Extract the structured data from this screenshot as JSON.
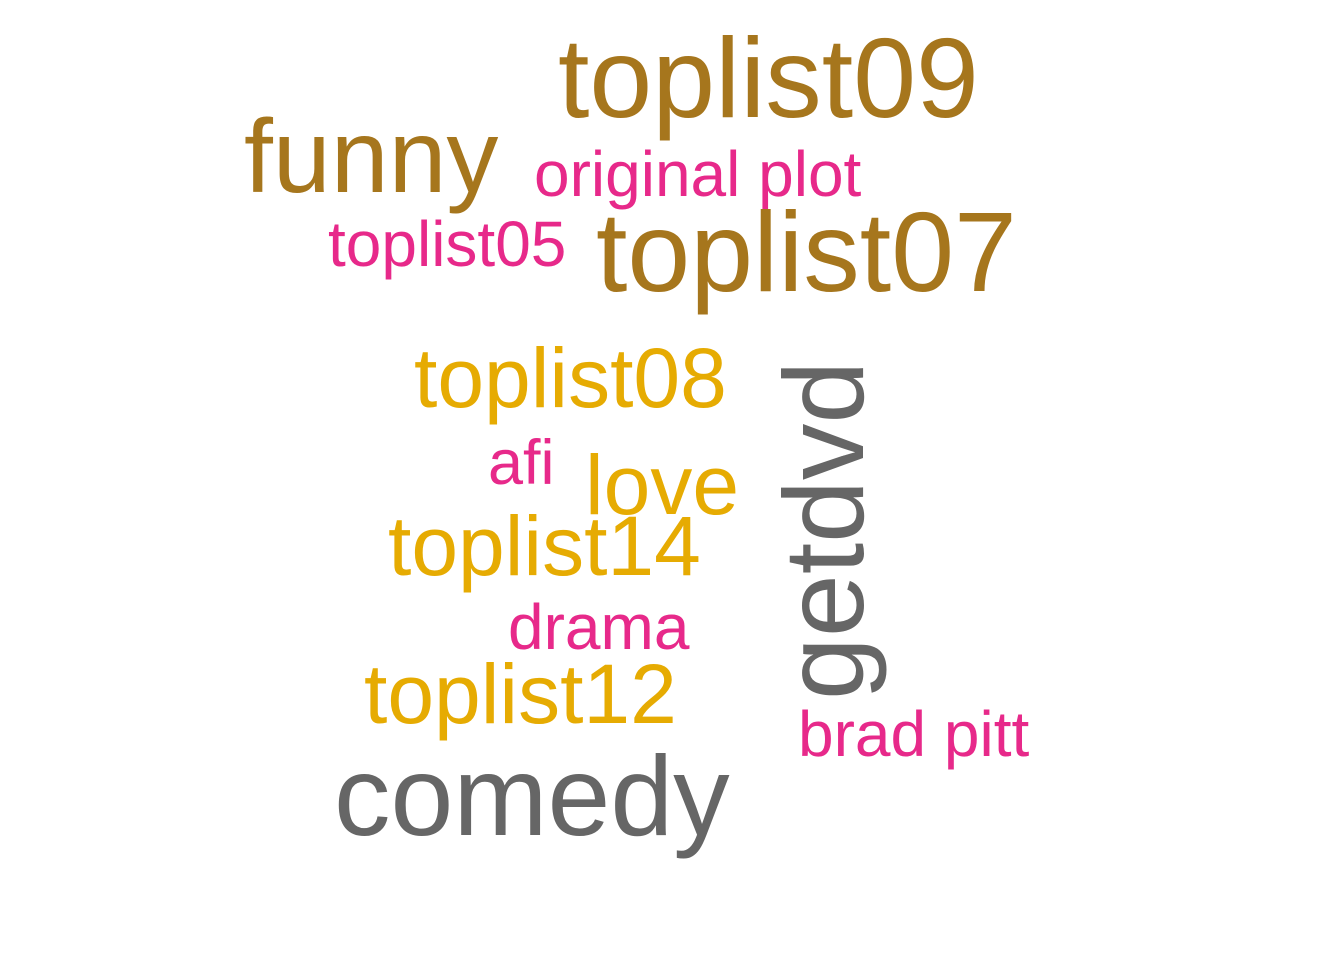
{
  "colors": {
    "brown": "#a6761d",
    "pink": "#e7298a",
    "gold": "#e6ab02",
    "grey": "#666666"
  },
  "words": {
    "toplist09": "toplist09",
    "funny": "funny",
    "original_plot": "original plot",
    "toplist05": "toplist05",
    "toplist07": "toplist07",
    "toplist08": "toplist08",
    "afi": "afi",
    "love": "love",
    "toplist14": "toplist14",
    "drama": "drama",
    "toplist12": "toplist12",
    "brad_pitt": "brad pitt",
    "comedy": "comedy",
    "getdvd": "getdvd"
  }
}
